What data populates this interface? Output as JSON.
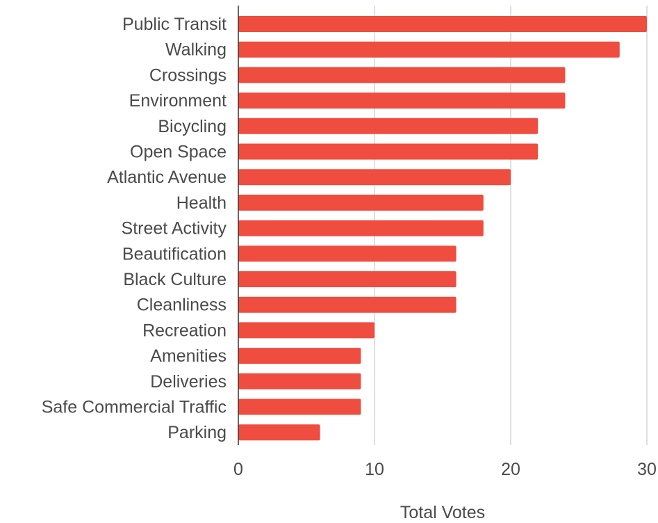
{
  "chart_data": {
    "type": "bar",
    "orientation": "horizontal",
    "categories": [
      "Public Transit",
      "Walking",
      "Crossings",
      "Environment",
      "Bicycling",
      "Open Space",
      "Atlantic Avenue",
      "Health",
      "Street Activity",
      "Beautification",
      "Black Culture",
      "Cleanliness",
      "Recreation",
      "Amenities",
      "Deliveries",
      "Safe Commercial Traffic",
      "Parking"
    ],
    "values": [
      30,
      28,
      24,
      24,
      22,
      22,
      20,
      18,
      18,
      16,
      16,
      16,
      10,
      9,
      9,
      9,
      6
    ],
    "xlabel": "Total Votes",
    "ylabel": "",
    "xlim": [
      0,
      30
    ],
    "xticks": [
      "0",
      "10",
      "20",
      "30"
    ],
    "grid": "vertical",
    "bar_color": "#ef4d3f",
    "grid_color": "#cccccc",
    "axis_color": "#333333",
    "text_color": "#4a4a4a"
  }
}
